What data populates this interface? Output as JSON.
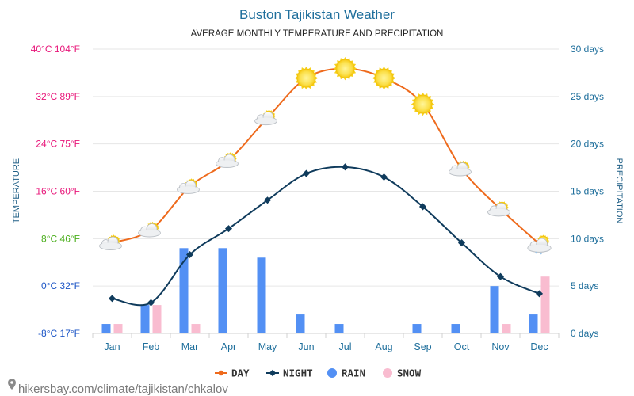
{
  "chart_data": {
    "type": "line",
    "title": "Buston Tajikistan Weather",
    "subtitle": "AVERAGE MONTHLY TEMPERATURE AND PRECIPITATION",
    "ylabel_left": "TEMPERATURE",
    "ylabel_right": "PRECIPITATION",
    "categories": [
      "Jan",
      "Feb",
      "Mar",
      "Apr",
      "May",
      "Jun",
      "Jul",
      "Aug",
      "Sep",
      "Oct",
      "Nov",
      "Dec"
    ],
    "left_axis": {
      "range_c": [
        -8,
        40
      ],
      "ticks": [
        {
          "value": 40,
          "label": "40°C 104°F",
          "color": "#e8177a"
        },
        {
          "value": 32,
          "label": "32°C 89°F",
          "color": "#e8177a"
        },
        {
          "value": 24,
          "label": "24°C 75°F",
          "color": "#e8177a"
        },
        {
          "value": 16,
          "label": "16°C 60°F",
          "color": "#e8177a"
        },
        {
          "value": 8,
          "label": "8°C 46°F",
          "color": "#4caf1e"
        },
        {
          "value": 0,
          "label": "0°C 32°F",
          "color": "#1d56c6"
        },
        {
          "value": -8,
          "label": "-8°C 17°F",
          "color": "#1d56c6"
        }
      ]
    },
    "right_axis": {
      "range_days": [
        0,
        30
      ],
      "ticks": [
        {
          "value": 30,
          "label": "30 days"
        },
        {
          "value": 25,
          "label": "25 days"
        },
        {
          "value": 20,
          "label": "20 days"
        },
        {
          "value": 15,
          "label": "15 days"
        },
        {
          "value": 10,
          "label": "10 days"
        },
        {
          "value": 5,
          "label": "5 days"
        },
        {
          "value": 0,
          "label": "0 days"
        }
      ]
    },
    "series": [
      {
        "name": "DAY",
        "unit": "°C",
        "color": "#ee6a1c",
        "values": [
          7.3,
          9.5,
          16.8,
          21.2,
          28.4,
          35.1,
          36.7,
          35.1,
          30.7,
          19.8,
          13.0,
          7.1
        ]
      },
      {
        "name": "NIGHT",
        "unit": "°C",
        "color": "#0f3b5c",
        "values": [
          -2.1,
          -2.8,
          5.3,
          9.7,
          14.5,
          19.0,
          20.1,
          18.4,
          13.4,
          7.3,
          1.6,
          -1.3
        ]
      },
      {
        "name": "RAIN",
        "unit": "days",
        "color": "#5390f4",
        "values": [
          1,
          3,
          9,
          9,
          8,
          2,
          1,
          0,
          1,
          1,
          5,
          2
        ]
      },
      {
        "name": "SNOW",
        "unit": "days",
        "color": "#f9bcd0",
        "values": [
          1,
          3,
          1,
          0,
          0,
          0,
          0,
          0,
          0,
          0,
          1,
          6
        ]
      }
    ],
    "weather_icons": [
      "partly-cloudy",
      "partly-cloudy",
      "partly-cloudy",
      "partly-cloudy",
      "partly-cloudy",
      "sunny",
      "sunny",
      "sunny",
      "sunny",
      "partly-cloudy",
      "partly-cloudy",
      "snow-cloudy"
    ],
    "legend": {
      "position": "bottom-center",
      "items": [
        "DAY",
        "NIGHT",
        "RAIN",
        "SNOW"
      ]
    }
  },
  "footer": {
    "link_text": "hikersbay.com/climate/tajikistan/chkalov"
  },
  "colors": {
    "title": "#1f6f9c",
    "right_axis_text": "#1f6f9c",
    "month_text": "#1f6f9c",
    "grid": "#e6e6e6",
    "footer_text": "#7a7a7a"
  }
}
